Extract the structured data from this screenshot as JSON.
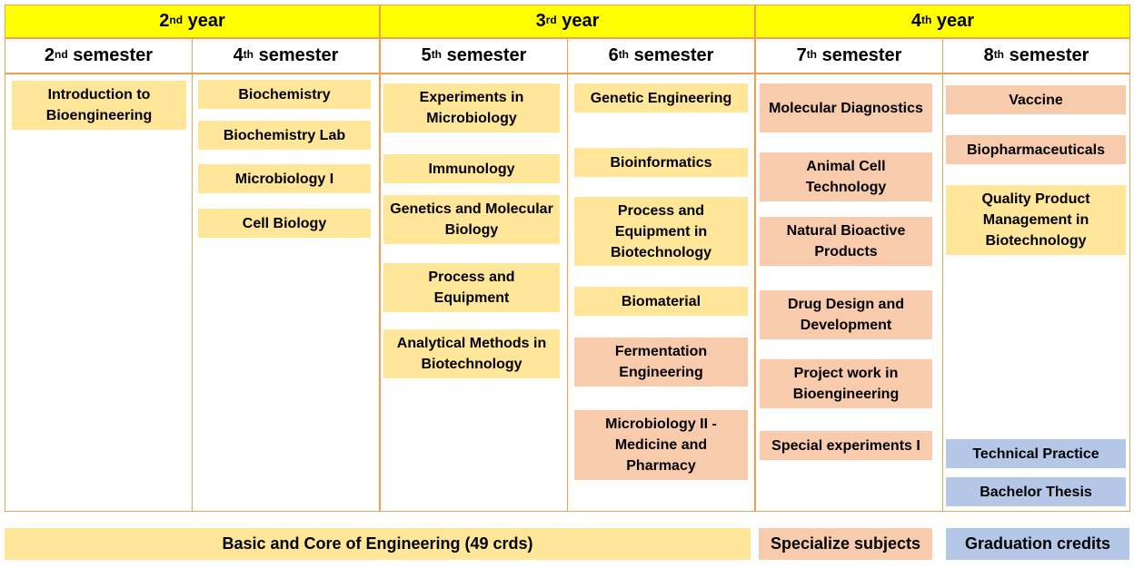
{
  "years": [
    {
      "num": "2",
      "suffix": "nd",
      "word": "year"
    },
    {
      "num": "3",
      "suffix": "rd",
      "word": "year"
    },
    {
      "num": "4",
      "suffix": "th",
      "word": "year"
    }
  ],
  "semesters": [
    {
      "num": "2",
      "suffix": "nd",
      "word": "semester"
    },
    {
      "num": "4",
      "suffix": "th",
      "word": "semester"
    },
    {
      "num": "5",
      "suffix": "th",
      "word": "semester"
    },
    {
      "num": "6",
      "suffix": "th",
      "word": "semester"
    },
    {
      "num": "7",
      "suffix": "th",
      "word": "semester"
    },
    {
      "num": "8",
      "suffix": "th",
      "word": "semester"
    }
  ],
  "columns": [
    {
      "subjects": [
        {
          "label": "Introduction to Bioengineering",
          "category": "basic"
        }
      ]
    },
    {
      "subjects": [
        {
          "label": "Biochemistry",
          "category": "basic"
        },
        {
          "label": "Biochemistry Lab",
          "category": "basic"
        },
        {
          "label": "Microbiology I",
          "category": "basic"
        },
        {
          "label": "Cell Biology",
          "category": "basic"
        }
      ]
    },
    {
      "subjects": [
        {
          "label": "Experiments in Microbiology",
          "category": "basic"
        },
        {
          "label": "Immunology",
          "category": "basic"
        },
        {
          "label": "Genetics and Molecular Biology",
          "category": "basic"
        },
        {
          "label": "Process and Equipment",
          "category": "basic"
        },
        {
          "label": "Analytical Methods in Biotechnology",
          "category": "basic"
        }
      ]
    },
    {
      "subjects": [
        {
          "label": "Genetic Engineering",
          "category": "basic"
        },
        {
          "label": "Bioinformatics",
          "category": "basic"
        },
        {
          "label": "Process and Equipment in Biotechnology",
          "category": "basic"
        },
        {
          "label": "Biomaterial",
          "category": "basic"
        },
        {
          "label": "Fermentation Engineering",
          "category": "specialize"
        },
        {
          "label": "Microbiology II - Medicine and Pharmacy",
          "category": "specialize"
        }
      ]
    },
    {
      "subjects": [
        {
          "label": "Molecular Diagnostics",
          "category": "specialize"
        },
        {
          "label": "Animal Cell Technology",
          "category": "specialize"
        },
        {
          "label": "Natural Bioactive Products",
          "category": "specialize"
        },
        {
          "label": "Drug Design and Development",
          "category": "specialize"
        },
        {
          "label": "Project work in Bioengineering",
          "category": "specialize"
        },
        {
          "label": "Special experiments I",
          "category": "specialize"
        }
      ]
    },
    {
      "subjects": [
        {
          "label": "Vaccine",
          "category": "specialize"
        },
        {
          "label": "Biopharmaceuticals",
          "category": "specialize"
        },
        {
          "label": "Quality Product Management in Biotechnology",
          "category": "basic"
        },
        {
          "label": "Technical Practice",
          "category": "graduation"
        },
        {
          "label": "Bachelor Thesis",
          "category": "graduation"
        }
      ]
    }
  ],
  "legend": {
    "basic": "Basic and Core of Engineering (49 crds)",
    "specialize": "Specialize subjects",
    "graduation": "Graduation credits"
  },
  "colors": {
    "year_header": "#ffff00",
    "border": "#f0a050",
    "basic": "#ffe699",
    "specialize": "#f8cbad",
    "graduation": "#b4c7e7"
  }
}
